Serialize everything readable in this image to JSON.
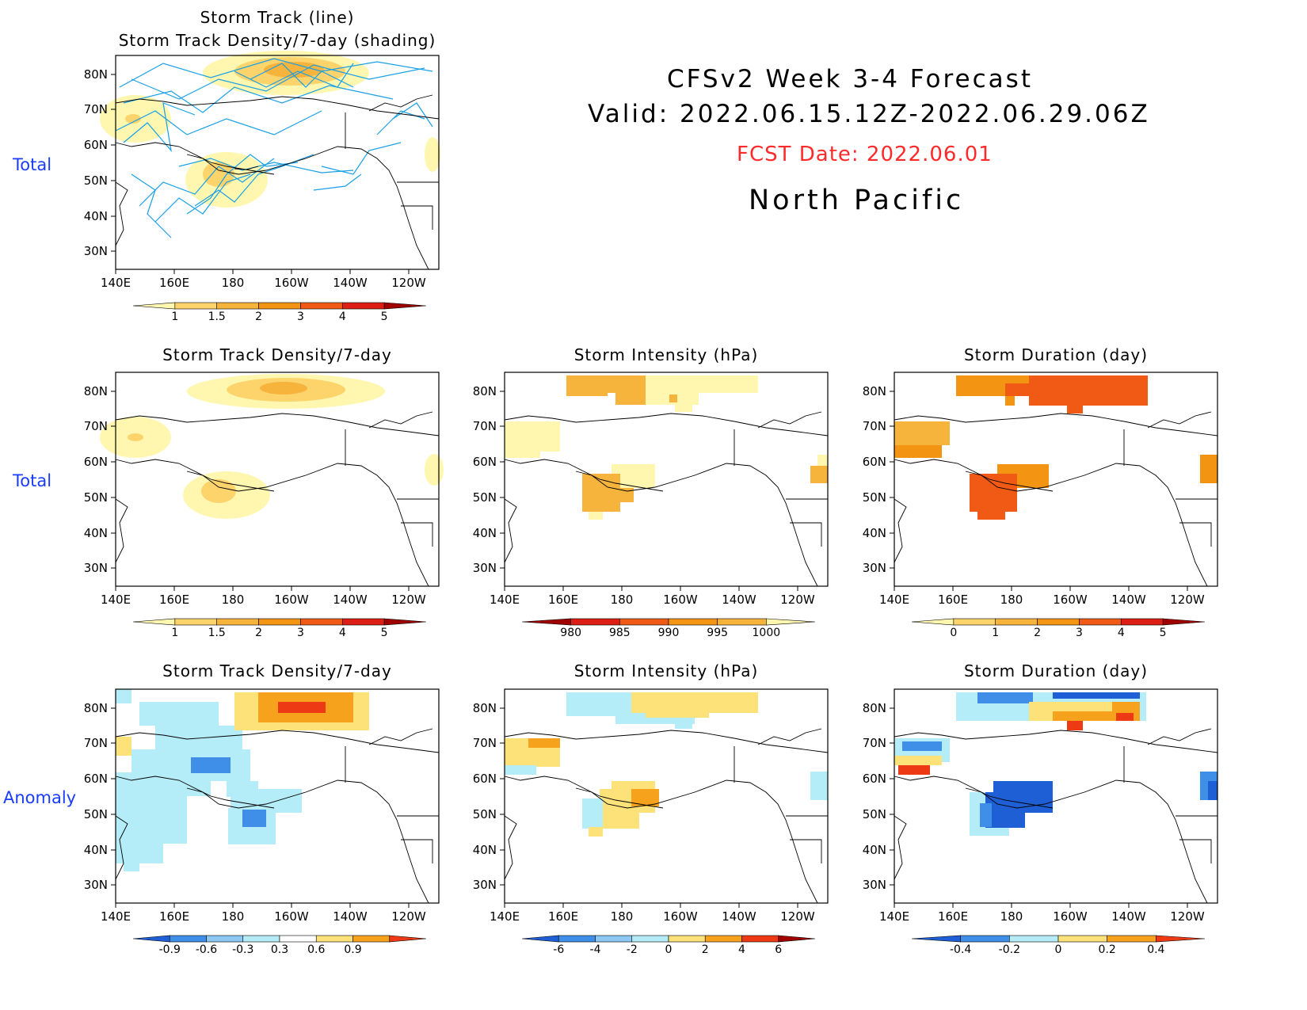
{
  "header": {
    "title_line1": "CFSv2  Week  3-4  Forecast",
    "title_line2": "Valid:  2022.06.15.12Z-2022.06.29.06Z",
    "fcst_date": "FCST Date: 2022.06.01",
    "region": "North  Pacific"
  },
  "row_labels": {
    "row1": "Total",
    "row2": "Total",
    "row3": "Anomaly"
  },
  "panels": {
    "p1": {
      "title_line1": "Storm  Track  (line)",
      "title_line2": "Storm  Track  Density/7-day  (shading)"
    },
    "p2": {
      "title": "Storm  Track  Density/7-day"
    },
    "p3": {
      "title": "Storm  Intensity  (hPa)"
    },
    "p4": {
      "title": "Storm  Duration  (day)"
    },
    "p5": {
      "title": "Storm  Track  Density/7-day"
    },
    "p6": {
      "title": "Storm  Intensity  (hPa)"
    },
    "p7": {
      "title": "Storm  Duration  (day)"
    }
  },
  "axes": {
    "lat_labels": [
      "80N",
      "70N",
      "60N",
      "50N",
      "40N",
      "30N"
    ],
    "lon_labels": [
      "140E",
      "160E",
      "180",
      "160W",
      "140W",
      "120W"
    ]
  },
  "colorbars": {
    "density_total": {
      "labels": [
        "1",
        "1.5",
        "2",
        "3",
        "4",
        "5"
      ],
      "colors": [
        "#fff7b0",
        "#fdd36b",
        "#f7b43d",
        "#f39413",
        "#f05a14",
        "#dc1e14",
        "#a00000"
      ]
    },
    "intensity_total": {
      "labels": [
        "980",
        "985",
        "990",
        "995",
        "1000"
      ],
      "colors": [
        "#a00000",
        "#dc1e14",
        "#f05a14",
        "#f39413",
        "#f7b43d",
        "#fff7b0"
      ]
    },
    "duration_total": {
      "labels": [
        "0",
        "1",
        "2",
        "3",
        "4",
        "5"
      ],
      "colors": [
        "#fff7b0",
        "#fdd36b",
        "#f7b43d",
        "#f39413",
        "#f05a14",
        "#dc1e14",
        "#a00000"
      ]
    },
    "density_anom": {
      "labels": [
        "-0.9",
        "-0.6",
        "-0.3",
        "0.3",
        "0.6",
        "0.9"
      ],
      "colors": [
        "#1f5fd6",
        "#3f8ee8",
        "#8dc8f3",
        "#b4ecf7",
        "#ffffff",
        "#fde27a",
        "#f7a21c",
        "#ee3a14"
      ]
    },
    "intensity_anom": {
      "labels": [
        "-6",
        "-4",
        "-2",
        "0",
        "2",
        "4",
        "6"
      ],
      "colors": [
        "#1f5fd6",
        "#3f8ee8",
        "#8dc8f3",
        "#b4ecf7",
        "#fde27a",
        "#f7a21c",
        "#ee3a14",
        "#a00000"
      ]
    },
    "duration_anom": {
      "labels": [
        "-0.4",
        "-0.2",
        "0",
        "0.2",
        "0.4"
      ],
      "colors": [
        "#1f5fd6",
        "#3f8ee8",
        "#b4ecf7",
        "#fde27a",
        "#f7a21c",
        "#ee3a14"
      ]
    }
  },
  "colors": {
    "row_label": "#1a3cff",
    "fcst_date": "#ff2a2a",
    "storm_track": "#1aa0e6"
  }
}
